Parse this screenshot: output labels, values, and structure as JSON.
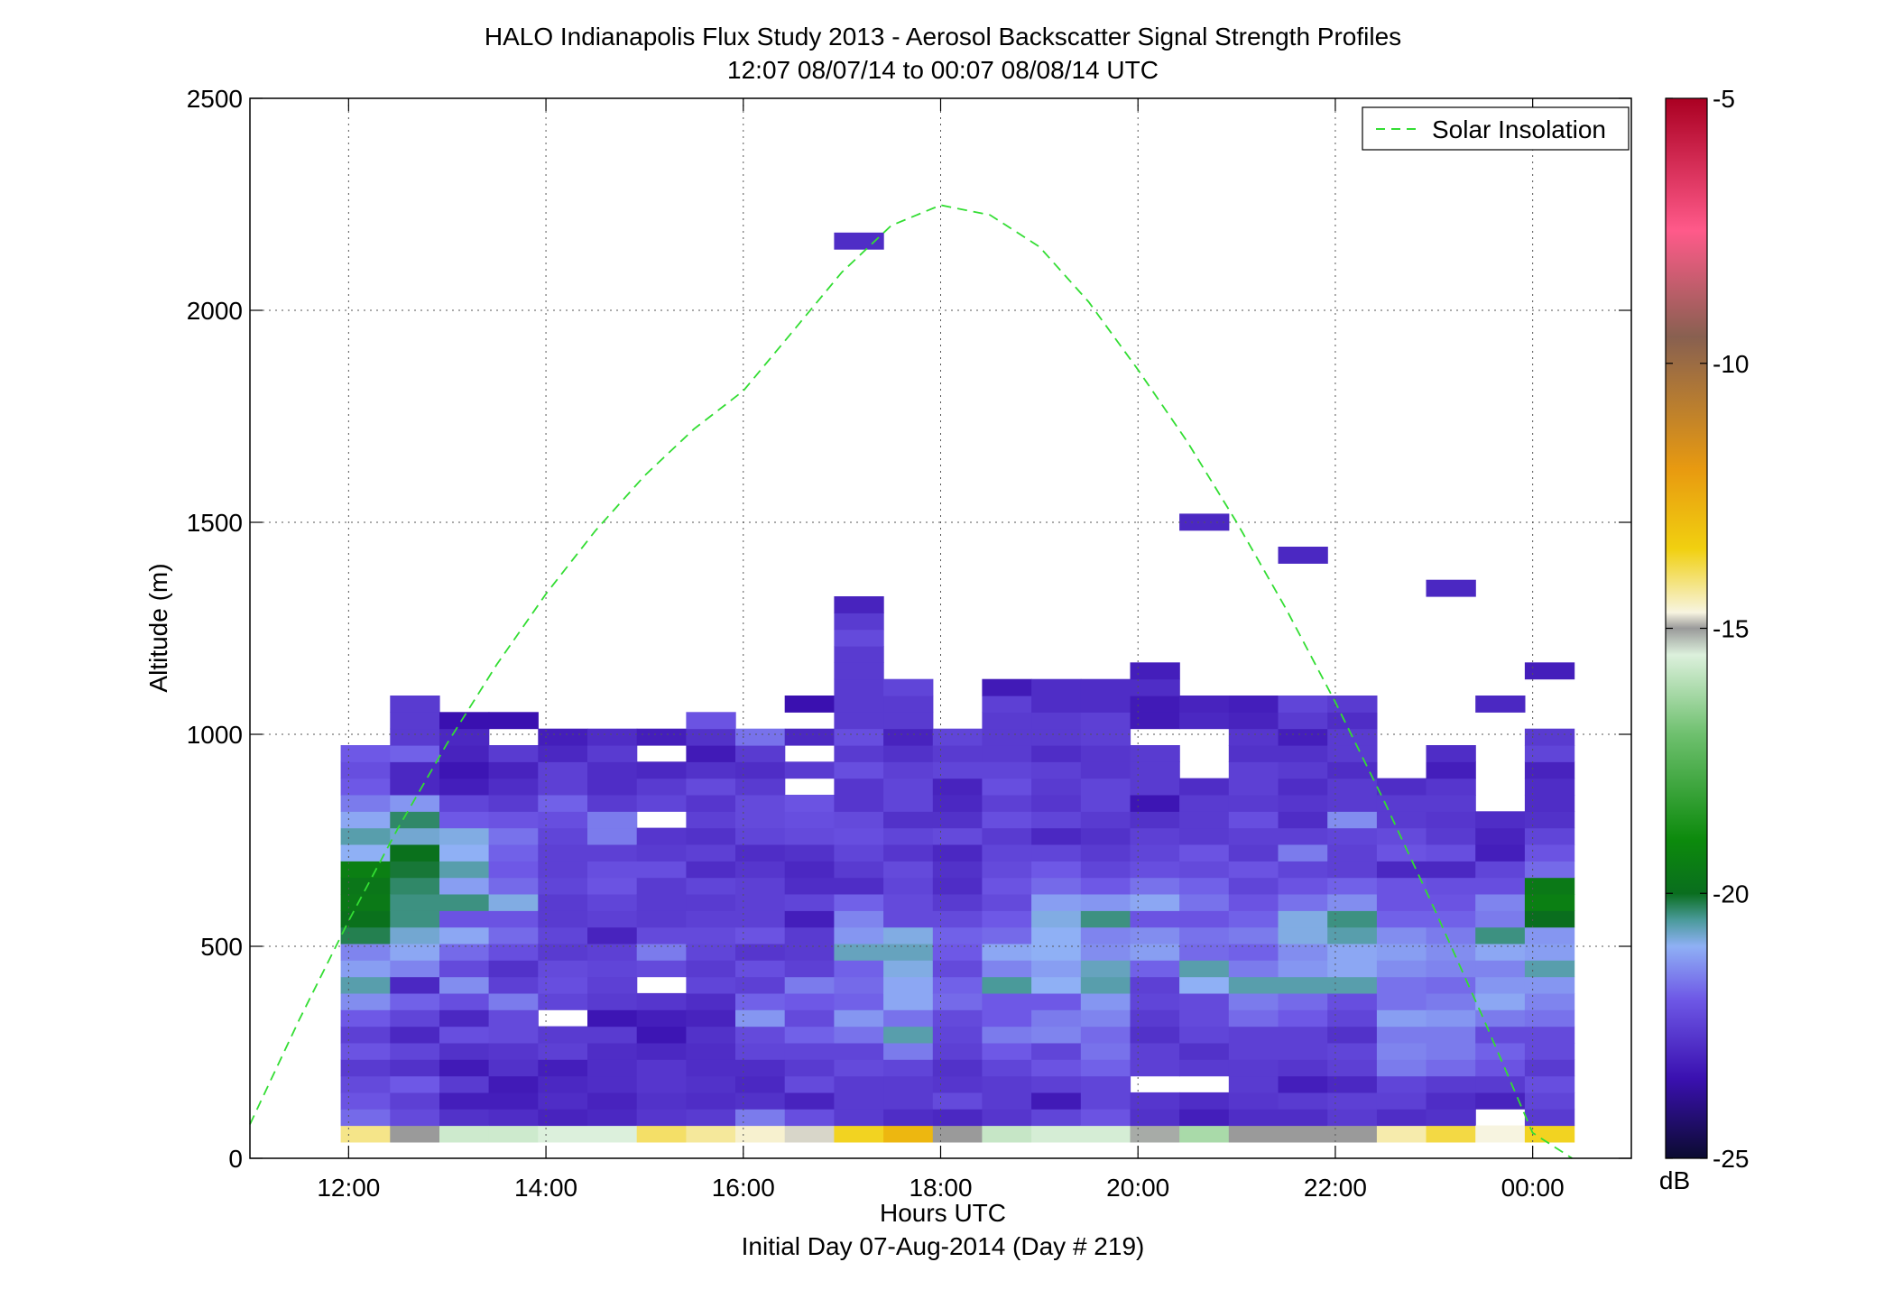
{
  "figure": {
    "title_line1": "HALO Indianapolis Flux Study 2013 - Aerosol Backscatter Signal Strength Profiles",
    "title_line2": "12:07 08/07/14 to 00:07 08/08/14  UTC",
    "xlabel": "Hours UTC",
    "xsublabel": "Initial Day 07-Aug-2014 (Day # 219)",
    "ylabel": "Altitude (m)",
    "colorbar_unit": "dB",
    "legend_label": "Solar Insolation"
  },
  "chart_data": {
    "type": "heatmap",
    "x_unit": "hours UTC (24 = 00:00 next day)",
    "xlim": [
      11,
      25
    ],
    "ylim": [
      0,
      2500
    ],
    "x_ticks": [
      12,
      14,
      16,
      18,
      20,
      22,
      24
    ],
    "x_tick_labels": [
      "12:00",
      "14:00",
      "16:00",
      "18:00",
      "20:00",
      "22:00",
      "00:00"
    ],
    "y_ticks": [
      0,
      500,
      1000,
      1500,
      2000,
      2500
    ],
    "y_tick_labels": [
      "0",
      "500",
      "1000",
      "1500",
      "2000",
      "2500"
    ],
    "grid": true,
    "legend_position": "top-right",
    "colorbar": {
      "range": [
        -25,
        -5
      ],
      "ticks": [
        -25,
        -20,
        -15,
        -10,
        -5
      ],
      "tick_labels": [
        "-25",
        "-20",
        "-15",
        "-10",
        "-5"
      ],
      "unit": "dB",
      "stops": [
        [
          -25,
          "#0b0b30"
        ],
        [
          -23.5,
          "#3a10b0"
        ],
        [
          -22,
          "#6e58e6"
        ],
        [
          -21,
          "#8fb0f5"
        ],
        [
          -20.5,
          "#4a9a9a"
        ],
        [
          -20,
          "#0a6e1e"
        ],
        [
          -19,
          "#0c8a0c"
        ],
        [
          -17,
          "#6ec06e"
        ],
        [
          -15.5,
          "#dcf0dc"
        ],
        [
          -15,
          "#9a9a9a"
        ],
        [
          -14.7,
          "#f7f4e0"
        ],
        [
          -13.5,
          "#f1d010"
        ],
        [
          -12,
          "#e89a10"
        ],
        [
          -9.5,
          "#886050"
        ],
        [
          -7.5,
          "#ff5a8a"
        ],
        [
          -5,
          "#aa0022"
        ]
      ]
    },
    "solar_insolation": {
      "style": "dashed",
      "color": "#33dd33",
      "points": [
        [
          11,
          80
        ],
        [
          11.5,
          327
        ],
        [
          12,
          560
        ],
        [
          12.5,
          778
        ],
        [
          13,
          979
        ],
        [
          13.5,
          1164
        ],
        [
          14,
          1331
        ],
        [
          14.5,
          1480
        ],
        [
          15,
          1610
        ],
        [
          15.5,
          1720
        ],
        [
          16,
          1810
        ],
        [
          16.5,
          1950
        ],
        [
          17,
          2090
        ],
        [
          17.5,
          2200
        ],
        [
          18,
          2248
        ],
        [
          18.5,
          2225
        ],
        [
          19,
          2150
        ],
        [
          19.5,
          2020
        ],
        [
          20,
          1860
        ],
        [
          20.5,
          1690
        ],
        [
          21,
          1500
        ],
        [
          21.5,
          1296
        ],
        [
          22,
          1076
        ],
        [
          22.5,
          840
        ],
        [
          23,
          590
        ],
        [
          23.5,
          330
        ],
        [
          24,
          60
        ],
        [
          24.4,
          0
        ]
      ]
    },
    "bin_height": 39,
    "time_bins": [
      12.17,
      12.67,
      13.17,
      13.67,
      14.17,
      14.67,
      15.17,
      15.67,
      16.17,
      16.67,
      17.17,
      17.67,
      18.17,
      18.67,
      19.17,
      19.67,
      20.17,
      20.67,
      21.17,
      21.67,
      22.17,
      22.67,
      23.17,
      23.67,
      24.17
    ],
    "bin_width_hours": 0.5,
    "profiles": [
      {
        "t": 12.17,
        "a": 58,
        "v": [
          -14.2,
          -21.8,
          -22.1,
          -22.3,
          -22.6,
          -22.1,
          -22.5,
          -22.0,
          -21.4,
          -20.6,
          -21.2,
          -21.5,
          -20.2,
          -19.9,
          -19.6,
          -19.7,
          -19.4,
          -21.0,
          -20.6,
          -21.1,
          -21.6,
          -22.0,
          -22.2,
          -22.0
        ]
      },
      {
        "t": 12.67,
        "a": 58,
        "v": [
          -15.0,
          -22.3,
          -22.5,
          -22.0,
          -22.8,
          -22.4,
          -23.0,
          -22.4,
          -21.9,
          -23.0,
          -21.5,
          -21.1,
          -20.8,
          -20.4,
          -20.4,
          -20.3,
          -20.1,
          -19.9,
          -20.8,
          -20.3,
          -21.3,
          -23.0,
          -23.0,
          -21.9,
          -22.6,
          -22.6,
          -22.6
        ]
      },
      {
        "t": 13.17,
        "a": 58,
        "v": [
          -15.7,
          -22.8,
          -23.2,
          -22.6,
          -23.3,
          -22.8,
          -22.2,
          -23.0,
          -22.2,
          -21.4,
          -22.3,
          -21.8,
          -21.1,
          -22.1,
          -20.4,
          -21.2,
          -20.6,
          -21.0,
          -20.9,
          -22.0,
          -22.4,
          -23.2,
          -23.4,
          -23.1,
          -23.0,
          -23.5
        ]
      },
      {
        "t": 13.67,
        "a": 58,
        "v": [
          -15.7,
          -22.9,
          -23.2,
          -23.3,
          -22.8,
          -22.7,
          -22.3,
          -22.3,
          -21.6,
          -22.5,
          -22.8,
          -22.2,
          -21.8,
          -22.1,
          -20.9,
          -21.8,
          -22.0,
          -21.9,
          -21.7,
          -22.1,
          -22.6,
          -22.9,
          -23.1,
          -22.6,
          null,
          -23.5
        ]
      },
      {
        "t": 14.17,
        "a": 58,
        "v": [
          -15.5,
          -23.1,
          -22.9,
          -23.0,
          -23.2,
          -22.5,
          -22.6,
          null,
          -22.4,
          -22.2,
          -22.3,
          -22.6,
          -22.4,
          -22.6,
          -22.6,
          -22.4,
          -22.5,
          -22.5,
          -22.4,
          -22.2,
          -21.9,
          -22.5,
          -22.5,
          -23.0,
          -23.2
        ]
      },
      {
        "t": 14.67,
        "a": 58,
        "v": [
          -15.5,
          -23.0,
          -23.1,
          -22.9,
          -22.9,
          -22.9,
          -22.6,
          -23.4,
          -22.6,
          -22.5,
          -22.4,
          -22.5,
          -23.1,
          -22.5,
          -22.4,
          -22.1,
          -22.2,
          -22.5,
          -21.6,
          -21.6,
          -22.6,
          -22.9,
          -22.9,
          -22.6,
          -22.9
        ]
      },
      {
        "t": 15.17,
        "a": 58,
        "v": [
          -14.0,
          -22.7,
          -22.8,
          -22.7,
          -22.7,
          -23.0,
          -23.4,
          -23.2,
          -22.7,
          null,
          -22.3,
          -21.6,
          -22.3,
          -22.6,
          -22.6,
          -22.6,
          -22.2,
          -22.6,
          -22.7,
          null,
          -22.4,
          -22.6,
          -23.0,
          null,
          -23.2
        ]
      },
      {
        "t": 15.67,
        "a": 58,
        "v": [
          -14.3,
          -22.6,
          -22.9,
          -22.8,
          -22.9,
          -22.9,
          -22.8,
          -23.1,
          -22.9,
          -22.4,
          -22.6,
          -22.4,
          -22.3,
          -22.5,
          -22.6,
          -22.4,
          -22.9,
          -22.5,
          -22.8,
          -22.5,
          -22.7,
          -22.3,
          -22.8,
          -23.3,
          -22.8,
          -22.1
        ]
      },
      {
        "t": 16.17,
        "a": 58,
        "v": [
          -14.6,
          -21.6,
          -22.8,
          -23.0,
          -22.9,
          -22.4,
          -22.3,
          -21.3,
          -21.9,
          -22.5,
          -22.2,
          -22.7,
          -22.1,
          -22.5,
          -22.5,
          -22.5,
          -22.7,
          -22.9,
          -22.4,
          -22.3,
          -22.3,
          -22.6,
          -22.9,
          -22.6,
          -21.7
        ]
      },
      {
        "t": 16.67,
        "a": 58,
        "v": [
          -14.8,
          -22.2,
          -23.1,
          -22.3,
          -22.6,
          -22.4,
          -21.9,
          -22.3,
          -22.0,
          -21.6,
          -22.5,
          -22.6,
          -22.6,
          -23.2,
          -22.4,
          -22.9,
          -23.0,
          -22.8,
          -22.3,
          -22.2,
          -22.1,
          null,
          -22.6,
          null,
          -23.0,
          null,
          -23.5
        ]
      },
      {
        "t": 17.17,
        "a": 58,
        "v": [
          -13.6,
          -22.6,
          -22.6,
          -22.6,
          -22.3,
          -22.4,
          -21.7,
          -21.3,
          -21.9,
          -21.8,
          -21.9,
          -20.7,
          -21.3,
          -21.5,
          -21.9,
          -22.9,
          -22.6,
          -22.4,
          -22.2,
          -22.3,
          -22.7,
          -22.7,
          -22.2,
          -22.6,
          -22.2,
          -22.6,
          -22.6,
          -22.6,
          -22.6,
          -22.6,
          -22.3,
          -22.6,
          -23.1,
          null,
          null,
          null,
          null,
          null,
          null,
          null,
          null,
          null,
          null,
          null,
          null,
          null,
          null,
          null,
          null,
          null,
          null,
          null,
          null,
          null,
          -22.9
        ]
      },
      {
        "t": 17.67,
        "a": 58,
        "v": [
          -12.8,
          -22.9,
          -22.6,
          -22.6,
          -22.4,
          -21.6,
          -20.6,
          -21.7,
          -21.1,
          -21.1,
          -20.9,
          -20.7,
          -20.9,
          -22.3,
          -22.3,
          -22.4,
          -22.3,
          -22.7,
          -22.4,
          -22.8,
          -22.4,
          -22.4,
          -22.5,
          -22.8,
          -23.1,
          -22.6,
          -22.6,
          -22.4
        ]
      },
      {
        "t": 18.17,
        "a": 58,
        "v": [
          -15.0,
          -23.0,
          -22.3,
          -22.7,
          -22.8,
          -22.5,
          -22.4,
          -22.3,
          -21.8,
          -21.9,
          -22.3,
          -22.0,
          -21.9,
          -22.3,
          -22.6,
          -22.9,
          -22.8,
          -23.0,
          -22.3,
          -22.8,
          -23.0,
          -23.1,
          -22.4,
          -22.6,
          -22.4
        ]
      },
      {
        "t": 18.67,
        "a": 58,
        "v": [
          -15.8,
          -22.7,
          -22.6,
          -22.6,
          -22.4,
          -22.0,
          -21.6,
          -22.0,
          -22.0,
          -20.5,
          -21.5,
          -21.1,
          -21.8,
          -22.0,
          -22.3,
          -22.1,
          -22.3,
          -22.4,
          -22.6,
          -22.2,
          -22.5,
          -22.2,
          -22.4,
          -22.6,
          -22.6,
          -22.6,
          -22.5,
          -23.3
        ]
      },
      {
        "t": 19.17,
        "a": 58,
        "v": [
          -15.6,
          -22.4,
          -23.3,
          -22.5,
          -22.1,
          -22.4,
          -21.5,
          -21.6,
          -22.0,
          -21.0,
          -21.2,
          -21.0,
          -21.0,
          -20.9,
          -21.2,
          -21.8,
          -22.0,
          -22.4,
          -23.0,
          -22.4,
          -22.7,
          -22.6,
          -22.5,
          -22.9,
          -22.6,
          -22.6,
          -22.9,
          -22.9
        ]
      },
      {
        "t": 19.67,
        "a": 58,
        "v": [
          -15.6,
          -22.1,
          -22.4,
          -22.4,
          -21.9,
          -21.7,
          -21.8,
          -21.5,
          -21.3,
          -20.6,
          -20.7,
          -21.4,
          -21.5,
          -20.4,
          -21.3,
          -22.0,
          -22.4,
          -22.6,
          -22.8,
          -22.6,
          -22.4,
          -22.4,
          -22.7,
          -22.7,
          -22.5,
          -22.5,
          -22.9,
          -22.9
        ]
      },
      {
        "t": 20.17,
        "a": 58,
        "v": [
          -15.1,
          -22.8,
          -22.7,
          null,
          -22.5,
          -22.5,
          -22.8,
          -22.6,
          -22.4,
          -22.5,
          -21.9,
          -21.2,
          -21.4,
          -22.1,
          -21.1,
          -21.7,
          -22.2,
          -22.4,
          -22.5,
          -22.8,
          -23.4,
          -22.6,
          -22.6,
          -22.6,
          null,
          -23.3,
          -23.3,
          -22.9,
          -23.2
        ]
      },
      {
        "t": 20.67,
        "a": 58,
        "v": [
          -16.2,
          -23.2,
          -22.9,
          null,
          -22.6,
          -22.8,
          -22.4,
          -22.3,
          -22.3,
          -21.0,
          -20.6,
          -21.8,
          -21.7,
          -22.1,
          -21.7,
          -21.9,
          -22.3,
          -22.1,
          -22.6,
          -22.6,
          -22.6,
          -22.9,
          null,
          null,
          null,
          -23.0,
          -23.1,
          null,
          null,
          null,
          null,
          null,
          null,
          null,
          null,
          null,
          null,
          -23.0
        ]
      },
      {
        "t": 21.17,
        "a": 58,
        "v": [
          -15.0,
          -22.9,
          -22.7,
          -22.6,
          -22.6,
          -22.5,
          -22.5,
          -21.8,
          -21.6,
          -20.6,
          -21.6,
          -21.9,
          -21.6,
          -21.9,
          -22.1,
          -22.4,
          -22.1,
          -22.6,
          -22.5,
          -22.2,
          -22.6,
          -22.5,
          -22.5,
          -22.8,
          -22.7,
          -23.1,
          -23.2
        ]
      },
      {
        "t": 21.67,
        "a": 58,
        "v": [
          -15.0,
          -22.9,
          -22.6,
          -23.2,
          -22.7,
          -22.5,
          -22.5,
          -22.0,
          -21.8,
          -20.6,
          -21.3,
          -21.4,
          -20.9,
          -20.9,
          -21.7,
          -22.1,
          -22.4,
          -21.6,
          -22.5,
          -22.9,
          -22.7,
          -22.9,
          -22.6,
          -22.8,
          -23.2,
          -22.6,
          -22.4,
          null,
          null,
          null,
          null,
          null,
          null,
          null,
          null,
          -23.0
        ]
      },
      {
        "t": 22.17,
        "a": 58,
        "v": [
          -15.0,
          -22.6,
          -22.5,
          -23.0,
          -22.5,
          -22.4,
          -22.8,
          -22.4,
          -22.2,
          -20.6,
          -21.1,
          -21.1,
          -20.6,
          -20.4,
          -21.4,
          -21.9,
          -22.5,
          -22.5,
          -22.4,
          -21.4,
          -22.6,
          -22.6,
          -22.9,
          -22.6,
          -22.6,
          -22.9,
          -22.6
        ]
      },
      {
        "t": 22.67,
        "a": 58,
        "v": [
          -14.4,
          -22.9,
          -22.5,
          -22.4,
          -21.6,
          -21.5,
          -21.6,
          -21.2,
          -21.7,
          -21.7,
          -21.4,
          -21.2,
          -21.4,
          -21.9,
          -22.1,
          -22.1,
          -23.0,
          -22.1,
          -22.3,
          -22.6,
          -22.6,
          -22.9
        ]
      },
      {
        "t": 23.17,
        "a": 58,
        "v": [
          -13.8,
          -22.8,
          -22.9,
          -22.6,
          -21.8,
          -21.6,
          -21.6,
          -21.3,
          -21.6,
          -21.8,
          -21.5,
          -21.4,
          -21.6,
          -21.9,
          -22.1,
          -22.2,
          -23.0,
          -22.2,
          -22.6,
          -22.7,
          -22.6,
          -22.7,
          -23.2,
          -22.9,
          null,
          null,
          null,
          null,
          null,
          null,
          null,
          null,
          null,
          -23.0
        ]
      },
      {
        "t": 23.67,
        "a": 58,
        "v": [
          -14.7,
          null,
          -23.1,
          -22.6,
          -22.1,
          -21.9,
          -22.3,
          -21.6,
          -21.1,
          -21.3,
          -21.5,
          -21.1,
          -20.4,
          -21.6,
          -21.5,
          -22.2,
          -22.4,
          -23.2,
          -23.1,
          -22.9,
          null,
          null,
          null,
          null,
          null,
          null,
          -23.0
        ]
      },
      {
        "t": 24.17,
        "a": 58,
        "v": [
          -13.6,
          -22.6,
          -22.4,
          -22.2,
          -22.6,
          -22.3,
          -22.3,
          -21.7,
          -21.5,
          -21.3,
          -20.6,
          -21.2,
          -21.3,
          -20.0,
          -19.4,
          -19.6,
          -21.8,
          -22.1,
          -22.4,
          -22.8,
          -22.9,
          -22.9,
          -23.1,
          -22.4,
          -22.6,
          null,
          null,
          null,
          -23.2
        ]
      }
    ]
  }
}
